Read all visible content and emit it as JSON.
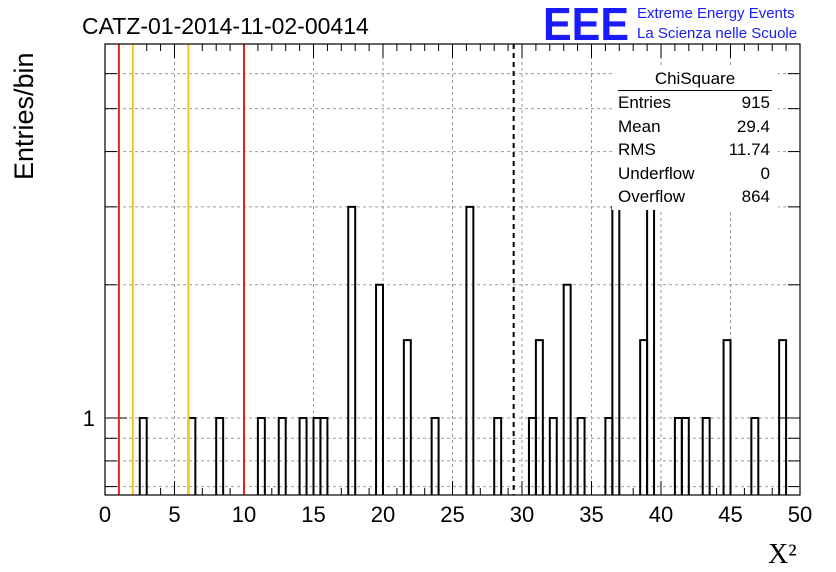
{
  "chart_data": {
    "type": "bar",
    "title": "CATZ-01-2014-11-02-00414",
    "xlabel": "X²",
    "ylabel": "Entries/bin",
    "xlim": [
      0,
      50
    ],
    "log_y": true,
    "ylim": [
      0.67,
      7.0
    ],
    "x_ticks": [
      "0",
      "5",
      "10",
      "15",
      "20",
      "25",
      "30",
      "35",
      "40",
      "45",
      "50"
    ],
    "y_ticks": [
      "1"
    ],
    "grid": true,
    "bin_width": 0.5,
    "bins": [
      {
        "x": 2.5,
        "value": 1
      },
      {
        "x": 6.0,
        "value": 1
      },
      {
        "x": 8.0,
        "value": 1
      },
      {
        "x": 11.0,
        "value": 1
      },
      {
        "x": 12.5,
        "value": 1
      },
      {
        "x": 14.0,
        "value": 1
      },
      {
        "x": 15.0,
        "value": 1
      },
      {
        "x": 15.5,
        "value": 1
      },
      {
        "x": 17.5,
        "value": 3
      },
      {
        "x": 19.5,
        "value": 2
      },
      {
        "x": 21.5,
        "value": 1.5
      },
      {
        "x": 23.5,
        "value": 1
      },
      {
        "x": 26.0,
        "value": 3
      },
      {
        "x": 28.0,
        "value": 1
      },
      {
        "x": 30.5,
        "value": 1
      },
      {
        "x": 31.0,
        "value": 1.5
      },
      {
        "x": 32.0,
        "value": 1
      },
      {
        "x": 33.0,
        "value": 2
      },
      {
        "x": 34.0,
        "value": 1
      },
      {
        "x": 36.0,
        "value": 1
      },
      {
        "x": 36.5,
        "value": 3
      },
      {
        "x": 38.5,
        "value": 1.5
      },
      {
        "x": 39.0,
        "value": 4
      },
      {
        "x": 41.0,
        "value": 1
      },
      {
        "x": 41.5,
        "value": 1
      },
      {
        "x": 43.0,
        "value": 1
      },
      {
        "x": 44.5,
        "value": 1.5
      },
      {
        "x": 46.5,
        "value": 1
      },
      {
        "x": 48.5,
        "value": 1.5
      }
    ],
    "reference_lines": [
      {
        "x": 1,
        "color": "#e8231f",
        "style": "solid"
      },
      {
        "x": 2,
        "color": "#f5c518",
        "style": "solid"
      },
      {
        "x": 6,
        "color": "#f5c518",
        "style": "solid"
      },
      {
        "x": 10,
        "color": "#e8231f",
        "style": "solid"
      },
      {
        "x": 29.4,
        "color": "#000000",
        "style": "dashed"
      }
    ],
    "stats": {
      "title": "ChiSquare",
      "rows": [
        {
          "label": "Entries",
          "value": "915"
        },
        {
          "label": "Mean",
          "value": "29.4"
        },
        {
          "label": "RMS",
          "value": "11.74"
        },
        {
          "label": "Underflow",
          "value": "0"
        },
        {
          "label": "Overflow",
          "value": "864"
        }
      ]
    }
  },
  "logo": {
    "text": "EEE",
    "line1": "Extreme Energy Events",
    "line2": "La Scienza nelle Scuole",
    "color": "#1a1aff"
  }
}
